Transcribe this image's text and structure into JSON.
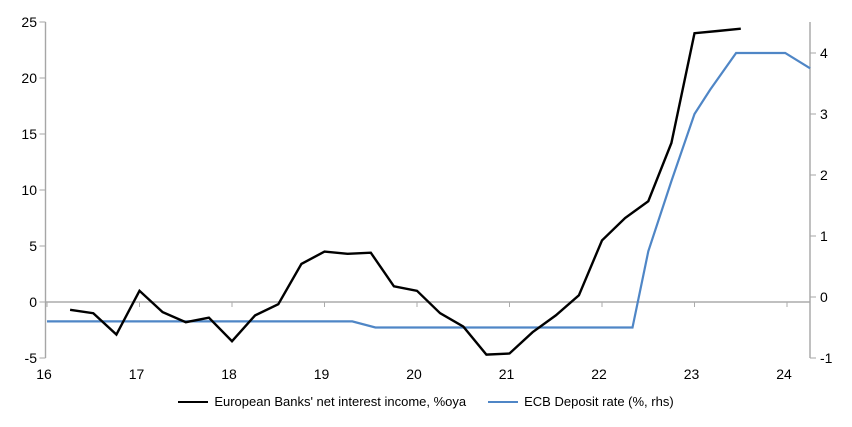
{
  "chart_data": {
    "type": "line",
    "title": "",
    "x_axis": {
      "tick_values": [
        16,
        17,
        18,
        19,
        20,
        21,
        22,
        23,
        24
      ],
      "tick_labels": [
        "16",
        "17",
        "18",
        "19",
        "20",
        "21",
        "22",
        "23",
        "24"
      ],
      "range": [
        16,
        24.25
      ]
    },
    "y_axis_left": {
      "tick_values": [
        25,
        20,
        15,
        10,
        5,
        0,
        -5
      ],
      "tick_labels": [
        "25",
        "20",
        "15",
        "10",
        "5",
        "0",
        "-5"
      ],
      "range": [
        -5,
        25
      ],
      "zero_line": true
    },
    "y_axis_right": {
      "tick_values": [
        4,
        3,
        2,
        1,
        0,
        -1
      ],
      "tick_labels": [
        "4",
        "3",
        "2",
        "1",
        "0",
        "-1"
      ],
      "range": [
        -1,
        4.5
      ]
    },
    "grid": "zero-line-only",
    "legend_position": "bottom",
    "series": [
      {
        "name": "European Banks' net interest income, %oya",
        "axis": "left",
        "color": "#000000",
        "points": [
          [
            16.25,
            -0.7
          ],
          [
            16.5,
            -1.0
          ],
          [
            16.75,
            -2.9
          ],
          [
            17.0,
            1.0
          ],
          [
            17.25,
            -0.9
          ],
          [
            17.5,
            -1.8
          ],
          [
            17.75,
            -1.4
          ],
          [
            18.0,
            -3.5
          ],
          [
            18.25,
            -1.2
          ],
          [
            18.5,
            -0.2
          ],
          [
            18.75,
            3.4
          ],
          [
            19.0,
            4.5
          ],
          [
            19.25,
            4.3
          ],
          [
            19.5,
            4.4
          ],
          [
            19.75,
            1.4
          ],
          [
            20.0,
            1.0
          ],
          [
            20.25,
            -1.0
          ],
          [
            20.5,
            -2.2
          ],
          [
            20.75,
            -4.7
          ],
          [
            21.0,
            -4.6
          ],
          [
            21.25,
            -2.7
          ],
          [
            21.5,
            -1.2
          ],
          [
            21.75,
            0.6
          ],
          [
            22.0,
            5.5
          ],
          [
            22.25,
            7.5
          ],
          [
            22.5,
            9.0
          ],
          [
            22.75,
            14.2
          ],
          [
            23.0,
            24.0
          ],
          [
            23.25,
            24.2
          ],
          [
            23.5,
            24.4
          ]
        ]
      },
      {
        "name": "ECB Deposit rate (%, rhs)",
        "axis": "right",
        "color": "#4F86C6",
        "points": [
          [
            16.0,
            -0.4
          ],
          [
            19.3,
            -0.4
          ],
          [
            19.55,
            -0.5
          ],
          [
            22.33,
            -0.5
          ],
          [
            22.5,
            0.75
          ],
          [
            22.75,
            1.9
          ],
          [
            23.0,
            3.0
          ],
          [
            23.17,
            3.4
          ],
          [
            23.45,
            4.0
          ],
          [
            23.98,
            4.0
          ],
          [
            24.25,
            3.75
          ]
        ]
      }
    ]
  },
  "colors": {
    "axis_line": "#A6A6A6",
    "zero_line": "#ABABAB",
    "tick_text": "#000000",
    "background": "#FFFFFF"
  }
}
